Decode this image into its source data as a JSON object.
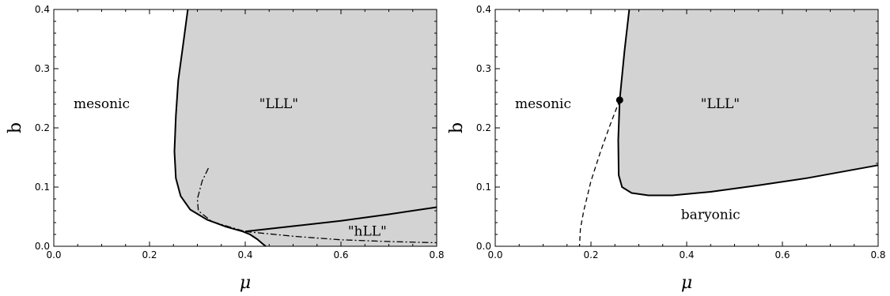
{
  "chart_data": [
    {
      "type": "area",
      "title": "",
      "xlabel": "μ",
      "ylabel": "b",
      "xlim": [
        0.0,
        0.8
      ],
      "ylim": [
        0.0,
        0.4
      ],
      "xticks": [
        0.0,
        0.2,
        0.4,
        0.6,
        0.8
      ],
      "yticks": [
        0.0,
        0.1,
        0.2,
        0.3,
        0.4
      ],
      "xtick_labels": [
        "0.0",
        "0.2",
        "0.4",
        "0.6",
        "0.8"
      ],
      "ytick_labels": [
        "0.0",
        "0.1",
        "0.2",
        "0.3",
        "0.4"
      ],
      "fill_color": "#d3d3d3",
      "regions": [
        {
          "label": "mesonic",
          "at": [
            0.1,
            0.24
          ]
        },
        {
          "label": "\"LLL\"",
          "at": [
            0.47,
            0.24
          ]
        },
        {
          "label": "\"hLL\"",
          "at": [
            0.655,
            0.025
          ]
        }
      ],
      "series": [
        {
          "style": "solid",
          "role": "boundary",
          "x": [
            0.28,
            0.27,
            0.26,
            0.255,
            0.252,
            0.255,
            0.265,
            0.285,
            0.32,
            0.36,
            0.395,
            0.41,
            0.425,
            0.435,
            0.443
          ],
          "y": [
            0.4,
            0.34,
            0.28,
            0.22,
            0.16,
            0.115,
            0.085,
            0.062,
            0.045,
            0.033,
            0.025,
            0.02,
            0.012,
            0.005,
            0.0
          ]
        },
        {
          "style": "solid",
          "role": "boundary",
          "x": [
            0.4,
            0.5,
            0.6,
            0.7,
            0.8
          ],
          "y": [
            0.025,
            0.034,
            0.043,
            0.054,
            0.066
          ]
        },
        {
          "style": "dashdot",
          "role": "unstable",
          "x": [
            0.323,
            0.31,
            0.3,
            0.302,
            0.33,
            0.37,
            0.4
          ],
          "y": [
            0.132,
            0.11,
            0.08,
            0.06,
            0.042,
            0.032,
            0.025
          ]
        },
        {
          "style": "dashdot",
          "role": "unstable",
          "x": [
            0.4,
            0.5,
            0.6,
            0.7,
            0.8
          ],
          "y": [
            0.025,
            0.017,
            0.011,
            0.008,
            0.006
          ]
        }
      ]
    },
    {
      "type": "area",
      "title": "",
      "xlabel": "μ",
      "ylabel": "b",
      "xlim": [
        0.0,
        0.8
      ],
      "ylim": [
        0.0,
        0.4
      ],
      "xticks": [
        0.0,
        0.2,
        0.4,
        0.6,
        0.8
      ],
      "yticks": [
        0.0,
        0.1,
        0.2,
        0.3,
        0.4
      ],
      "xtick_labels": [
        "0.0",
        "0.2",
        "0.4",
        "0.6",
        "0.8"
      ],
      "ytick_labels": [
        "0.0",
        "0.1",
        "0.2",
        "0.3",
        "0.4"
      ],
      "fill_color": "#d3d3d3",
      "regions": [
        {
          "label": "mesonic",
          "at": [
            0.1,
            0.24
          ]
        },
        {
          "label": "\"LLL\"",
          "at": [
            0.47,
            0.24
          ]
        },
        {
          "label": "baryonic",
          "at": [
            0.45,
            0.053
          ]
        }
      ],
      "critical_point": {
        "x": 0.26,
        "y": 0.247
      },
      "series": [
        {
          "style": "solid",
          "role": "boundary",
          "x": [
            0.28,
            0.27,
            0.26,
            0.257,
            0.258,
            0.265,
            0.285,
            0.32,
            0.37,
            0.45,
            0.55,
            0.65,
            0.8
          ],
          "y": [
            0.4,
            0.33,
            0.247,
            0.18,
            0.12,
            0.1,
            0.09,
            0.086,
            0.086,
            0.092,
            0.103,
            0.115,
            0.137
          ]
        },
        {
          "style": "dashed",
          "role": "first-order",
          "x": [
            0.26,
            0.24,
            0.22,
            0.2,
            0.185,
            0.178,
            0.176
          ],
          "y": [
            0.247,
            0.205,
            0.16,
            0.11,
            0.06,
            0.03,
            0.0
          ]
        }
      ]
    }
  ]
}
